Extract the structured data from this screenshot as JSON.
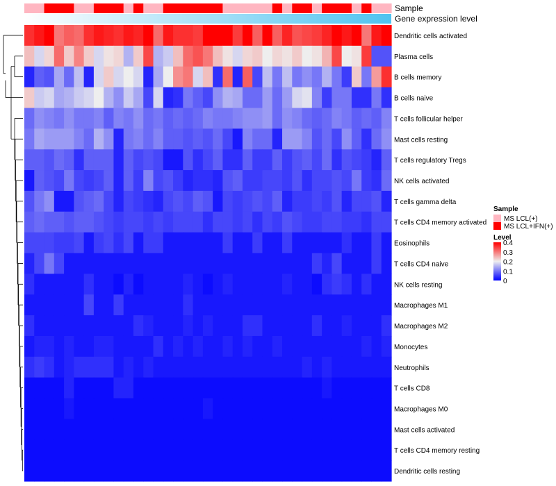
{
  "chart_data": {
    "type": "heatmap",
    "annotations": {
      "sample_label": "Sample",
      "expression_label": "Gene expression level",
      "sample_groups": [
        "L",
        "L",
        "I",
        "I",
        "I",
        "L",
        "L",
        "I",
        "I",
        "I",
        "L",
        "I",
        "L",
        "L",
        "I",
        "I",
        "I",
        "I",
        "I",
        "I",
        "L",
        "L",
        "L",
        "L",
        "L",
        "I",
        "L",
        "I",
        "I",
        "L",
        "I",
        "I",
        "I",
        "L",
        "I",
        "L",
        "L"
      ],
      "colors": {
        "MS LCL(+)": "#FFB6C1",
        "MS LCL+IFN(+)": "#FF0000"
      }
    },
    "rows": [
      {
        "label": "Dendritic cells activated",
        "values": [
          0.36,
          0.38,
          0.4,
          0.3,
          0.32,
          0.31,
          0.36,
          0.38,
          0.37,
          0.36,
          0.38,
          0.37,
          0.4,
          0.31,
          0.38,
          0.36,
          0.36,
          0.35,
          0.4,
          0.4,
          0.4,
          0.35,
          0.4,
          0.32,
          0.41,
          0.32,
          0.37,
          0.33,
          0.34,
          0.35,
          0.37,
          0.4,
          0.38,
          0.4,
          0.3,
          0.38,
          0.42
        ]
      },
      {
        "label": "Plasma cells",
        "values": [
          0.24,
          0.18,
          0.22,
          0.31,
          0.23,
          0.29,
          0.23,
          0.18,
          0.21,
          0.22,
          0.15,
          0.23,
          0.34,
          0.15,
          0.17,
          0.24,
          0.31,
          0.33,
          0.3,
          0.24,
          0.21,
          0.18,
          0.22,
          0.23,
          0.2,
          0.22,
          0.21,
          0.23,
          0.2,
          0.21,
          0.25,
          0.34,
          0.2,
          0.21,
          0.35,
          0.07,
          0.07
        ]
      },
      {
        "label": "B cells memory",
        "values": [
          0.03,
          0.08,
          0.07,
          0.14,
          0.09,
          0.16,
          0.03,
          0.18,
          0.23,
          0.18,
          0.2,
          0.18,
          0.03,
          0.14,
          0.2,
          0.28,
          0.3,
          0.18,
          0.24,
          0.04,
          0.31,
          0.03,
          0.32,
          0.06,
          0.16,
          0.1,
          0.16,
          0.1,
          0.12,
          0.1,
          0.15,
          0.1,
          0.05,
          0.23,
          0.1,
          0.27,
          0.36
        ]
      },
      {
        "label": "B cells naive",
        "values": [
          0.23,
          0.17,
          0.18,
          0.14,
          0.15,
          0.17,
          0.18,
          0.2,
          0.15,
          0.12,
          0.17,
          0.14,
          0.06,
          0.18,
          0.03,
          0.04,
          0.1,
          0.08,
          0.06,
          0.12,
          0.15,
          0.14,
          0.09,
          0.09,
          0.13,
          0.09,
          0.13,
          0.18,
          0.19,
          0.11,
          0.05,
          0.1,
          0.1,
          0.04,
          0.04,
          0.1,
          0.04
        ]
      },
      {
        "label": "T cells follicular helper",
        "values": [
          0.09,
          0.12,
          0.11,
          0.1,
          0.12,
          0.1,
          0.1,
          0.11,
          0.08,
          0.11,
          0.1,
          0.12,
          0.09,
          0.1,
          0.08,
          0.09,
          0.08,
          0.09,
          0.11,
          0.1,
          0.1,
          0.11,
          0.12,
          0.12,
          0.13,
          0.09,
          0.12,
          0.11,
          0.09,
          0.08,
          0.09,
          0.11,
          0.1,
          0.08,
          0.09,
          0.08,
          0.11
        ]
      },
      {
        "label": "Mast cells resting",
        "values": [
          0.1,
          0.14,
          0.13,
          0.13,
          0.13,
          0.11,
          0.09,
          0.15,
          0.12,
          0.03,
          0.1,
          0.11,
          0.09,
          0.11,
          0.08,
          0.08,
          0.07,
          0.08,
          0.07,
          0.09,
          0.06,
          0.02,
          0.11,
          0.09,
          0.09,
          0.03,
          0.13,
          0.13,
          0.11,
          0.07,
          0.09,
          0.06,
          0.12,
          0.08,
          0.04,
          0.09,
          0.12
        ]
      },
      {
        "label": "T cells regulatory  Tregs",
        "values": [
          0.08,
          0.08,
          0.07,
          0.09,
          0.08,
          0.04,
          0.08,
          0.08,
          0.08,
          0.03,
          0.08,
          0.06,
          0.07,
          0.06,
          0.02,
          0.02,
          0.07,
          0.04,
          0.06,
          0.08,
          0.04,
          0.04,
          0.08,
          0.05,
          0.05,
          0.08,
          0.05,
          0.07,
          0.08,
          0.06,
          0.09,
          0.04,
          0.07,
          0.06,
          0.05,
          0.03,
          0.08
        ]
      },
      {
        "label": "NK cells activated",
        "values": [
          0.02,
          0.08,
          0.07,
          0.06,
          0.1,
          0.06,
          0.05,
          0.06,
          0.08,
          0.03,
          0.08,
          0.05,
          0.11,
          0.06,
          0.07,
          0.05,
          0.03,
          0.04,
          0.04,
          0.03,
          0.07,
          0.08,
          0.05,
          0.05,
          0.06,
          0.06,
          0.05,
          0.07,
          0.04,
          0.06,
          0.06,
          0.07,
          0.06,
          0.1,
          0.05,
          0.04,
          0.09
        ]
      },
      {
        "label": "T cells gamma delta",
        "values": [
          0.07,
          0.1,
          0.12,
          0.02,
          0.02,
          0.07,
          0.08,
          0.09,
          0.06,
          0.03,
          0.06,
          0.05,
          0.04,
          0.03,
          0.06,
          0.07,
          0.06,
          0.08,
          0.07,
          0.02,
          0.06,
          0.05,
          0.06,
          0.07,
          0.06,
          0.08,
          0.03,
          0.05,
          0.05,
          0.06,
          0.05,
          0.07,
          0.03,
          0.06,
          0.06,
          0.07,
          0.03
        ]
      },
      {
        "label": "T cells CD4 memory activated",
        "values": [
          0.08,
          0.09,
          0.08,
          0.08,
          0.07,
          0.08,
          0.08,
          0.07,
          0.06,
          0.05,
          0.06,
          0.06,
          0.05,
          0.06,
          0.05,
          0.06,
          0.06,
          0.06,
          0.04,
          0.06,
          0.06,
          0.05,
          0.06,
          0.04,
          0.06,
          0.05,
          0.07,
          0.06,
          0.05,
          0.05,
          0.06,
          0.06,
          0.05,
          0.05,
          0.04,
          0.06,
          0.06
        ]
      },
      {
        "label": "Eosinophils",
        "values": [
          0.06,
          0.06,
          0.06,
          0.05,
          0.05,
          0.06,
          0.02,
          0.05,
          0.06,
          0.04,
          0.06,
          0.02,
          0.05,
          0.05,
          0.02,
          0.02,
          0.02,
          0.02,
          0.02,
          0.02,
          0.05,
          0.02,
          0.02,
          0.05,
          0.02,
          0.02,
          0.05,
          0.02,
          0.02,
          0.02,
          0.02,
          0.02,
          0.04,
          0.02,
          0.02,
          0.05,
          0.02
        ]
      },
      {
        "label": "T cells CD4 naive",
        "values": [
          0.03,
          0.06,
          0.1,
          0.06,
          0.02,
          0.02,
          0.02,
          0.02,
          0.02,
          0.02,
          0.02,
          0.02,
          0.02,
          0.02,
          0.02,
          0.02,
          0.02,
          0.02,
          0.02,
          0.02,
          0.02,
          0.02,
          0.02,
          0.02,
          0.02,
          0.02,
          0.02,
          0.02,
          0.02,
          0.05,
          0.03,
          0.06,
          0.02,
          0.02,
          0.02,
          0.05,
          0.02
        ]
      },
      {
        "label": "NK cells resting",
        "values": [
          0.04,
          0.02,
          0.02,
          0.02,
          0.02,
          0.02,
          0.04,
          0.02,
          0.02,
          0.01,
          0.03,
          0.01,
          0.02,
          0.02,
          0.02,
          0.02,
          0.03,
          0.02,
          0.01,
          0.02,
          0.03,
          0.02,
          0.02,
          0.02,
          0.02,
          0.02,
          0.03,
          0.02,
          0.02,
          0.01,
          0.04,
          0.05,
          0.04,
          0.02,
          0.04,
          0.02,
          0.02
        ]
      },
      {
        "label": "Macrophages M1",
        "values": [
          0.02,
          0.02,
          0.02,
          0.02,
          0.02,
          0.02,
          0.06,
          0.02,
          0.02,
          0.05,
          0.02,
          0.02,
          0.02,
          0.02,
          0.02,
          0.02,
          0.04,
          0.02,
          0.02,
          0.02,
          0.02,
          0.02,
          0.02,
          0.02,
          0.02,
          0.02,
          0.02,
          0.02,
          0.02,
          0.02,
          0.02,
          0.02,
          0.02,
          0.02,
          0.02,
          0.02,
          0.02
        ]
      },
      {
        "label": "Macrophages M2",
        "values": [
          0.04,
          0.02,
          0.02,
          0.02,
          0.02,
          0.02,
          0.02,
          0.02,
          0.02,
          0.02,
          0.02,
          0.04,
          0.03,
          0.02,
          0.02,
          0.02,
          0.03,
          0.02,
          0.03,
          0.02,
          0.02,
          0.02,
          0.04,
          0.04,
          0.02,
          0.02,
          0.02,
          0.02,
          0.02,
          0.04,
          0.02,
          0.02,
          0.03,
          0.02,
          0.02,
          0.02,
          0.04
        ]
      },
      {
        "label": "Monocytes",
        "values": [
          0.02,
          0.03,
          0.03,
          0.02,
          0.03,
          0.02,
          0.02,
          0.03,
          0.03,
          0.02,
          0.02,
          0.02,
          0.02,
          0.04,
          0.02,
          0.03,
          0.02,
          0.03,
          0.02,
          0.02,
          0.03,
          0.02,
          0.03,
          0.02,
          0.02,
          0.03,
          0.02,
          0.02,
          0.02,
          0.02,
          0.02,
          0.02,
          0.02,
          0.02,
          0.03,
          0.02,
          0.03
        ]
      },
      {
        "label": "Neutrophils",
        "values": [
          0.04,
          0.05,
          0.04,
          0.02,
          0.03,
          0.04,
          0.04,
          0.04,
          0.04,
          0.02,
          0.03,
          0.02,
          0.03,
          0.02,
          0.02,
          0.02,
          0.02,
          0.02,
          0.02,
          0.02,
          0.02,
          0.02,
          0.02,
          0.02,
          0.02,
          0.02,
          0.02,
          0.02,
          0.03,
          0.02,
          0.03,
          0.02,
          0.02,
          0.02,
          0.02,
          0.02,
          0.02
        ]
      },
      {
        "label": "T cells CD8",
        "values": [
          0.01,
          0.01,
          0.01,
          0.01,
          0.03,
          0.01,
          0.01,
          0.01,
          0.01,
          0.03,
          0.03,
          0.01,
          0.01,
          0.01,
          0.01,
          0.01,
          0.01,
          0.01,
          0.01,
          0.01,
          0.01,
          0.01,
          0.01,
          0.01,
          0.01,
          0.01,
          0.01,
          0.01,
          0.01,
          0.01,
          0.02,
          0.01,
          0.01,
          0.01,
          0.01,
          0.01,
          0.01
        ]
      },
      {
        "label": "Macrophages M0",
        "values": [
          0.01,
          0.01,
          0.01,
          0.01,
          0.02,
          0.01,
          0.01,
          0.01,
          0.01,
          0.01,
          0.01,
          0.01,
          0.01,
          0.01,
          0.01,
          0.01,
          0.01,
          0.01,
          0.02,
          0.01,
          0.01,
          0.01,
          0.01,
          0.01,
          0.01,
          0.01,
          0.01,
          0.01,
          0.01,
          0.01,
          0.01,
          0.01,
          0.01,
          0.01,
          0.01,
          0.01,
          0.01
        ]
      },
      {
        "label": "Mast cells activated",
        "values": [
          0.01,
          0.01,
          0.01,
          0.01,
          0.01,
          0.01,
          0.01,
          0.01,
          0.01,
          0.01,
          0.01,
          0.01,
          0.01,
          0.01,
          0.01,
          0.01,
          0.01,
          0.01,
          0.01,
          0.01,
          0.01,
          0.01,
          0.01,
          0.01,
          0.01,
          0.01,
          0.01,
          0.01,
          0.01,
          0.01,
          0.01,
          0.01,
          0.01,
          0.01,
          0.01,
          0.01,
          0.01
        ]
      },
      {
        "label": "T cells CD4 memory resting",
        "values": [
          0.01,
          0.01,
          0.01,
          0.01,
          0.01,
          0.01,
          0.01,
          0.01,
          0.01,
          0.01,
          0.01,
          0.01,
          0.01,
          0.01,
          0.01,
          0.01,
          0.01,
          0.01,
          0.01,
          0.01,
          0.01,
          0.01,
          0.01,
          0.01,
          0.01,
          0.01,
          0.01,
          0.01,
          0.01,
          0.01,
          0.01,
          0.01,
          0.01,
          0.01,
          0.01,
          0.01,
          0.01
        ]
      },
      {
        "label": "Dendritic cells resting",
        "values": [
          0.01,
          0.01,
          0.01,
          0.01,
          0.01,
          0.01,
          0.01,
          0.01,
          0.01,
          0.01,
          0.01,
          0.01,
          0.01,
          0.01,
          0.01,
          0.01,
          0.01,
          0.01,
          0.01,
          0.01,
          0.01,
          0.01,
          0.01,
          0.01,
          0.01,
          0.01,
          0.01,
          0.01,
          0.01,
          0.01,
          0.01,
          0.01,
          0.01,
          0.01,
          0.01,
          0.01,
          0.01
        ]
      }
    ],
    "color_scale": {
      "min": 0,
      "mid": 0.2,
      "max": 0.4,
      "low_color": "#0000FF",
      "mid_color": "#EEEEEE",
      "high_color": "#FF0000"
    },
    "legend": {
      "sample_title": "Sample",
      "sample_entries": [
        "MS LCL(+)",
        "MS LCL+IFN(+)"
      ],
      "level_title": "Level",
      "level_ticks": [
        "0.4",
        "0.3",
        "0.2",
        "0.1",
        "0"
      ]
    }
  }
}
